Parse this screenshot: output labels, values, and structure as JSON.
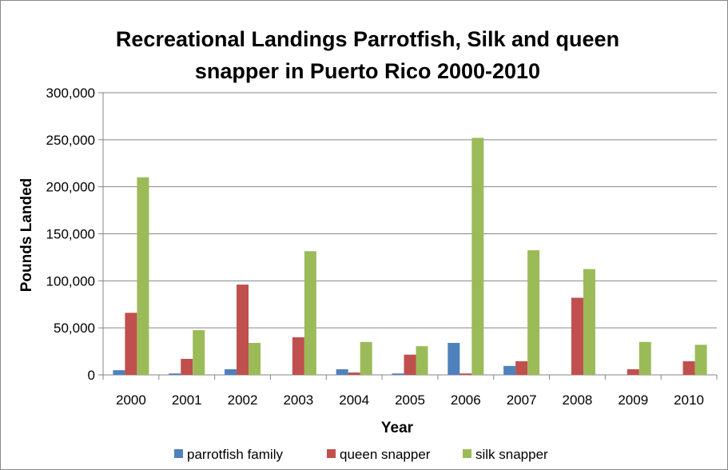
{
  "chart_data": {
    "type": "bar",
    "title_lines": [
      "Recreational Landings Parrotfish, Silk and queen",
      "snapper in Puerto Rico 2000-2010"
    ],
    "xlabel": "Year",
    "ylabel": "Pounds Landed",
    "categories": [
      "2000",
      "2001",
      "2002",
      "2003",
      "2004",
      "2005",
      "2006",
      "2007",
      "2008",
      "2009",
      "2010"
    ],
    "ylim": [
      0,
      300000
    ],
    "yticks": [
      0,
      50000,
      100000,
      150000,
      200000,
      250000,
      300000
    ],
    "ytick_labels": [
      "0",
      "50,000",
      "100,000",
      "150,000",
      "200,000",
      "250,000",
      "300,000"
    ],
    "grid": true,
    "legend_position": "bottom",
    "series": [
      {
        "name": "parrotfish family",
        "color": "#4F81BD",
        "values": [
          5000,
          1500,
          6000,
          0,
          6000,
          1500,
          34000,
          9500,
          0,
          0,
          0
        ]
      },
      {
        "name": "queen snapper",
        "color": "#C0504D",
        "values": [
          66000,
          17000,
          96000,
          40000,
          2500,
          21500,
          1500,
          14500,
          82000,
          6000,
          14500
        ]
      },
      {
        "name": "silk snapper",
        "color": "#9BBB59",
        "values": [
          210000,
          47500,
          34000,
          131500,
          35000,
          30500,
          252000,
          132500,
          112500,
          35000,
          32000
        ]
      }
    ]
  }
}
